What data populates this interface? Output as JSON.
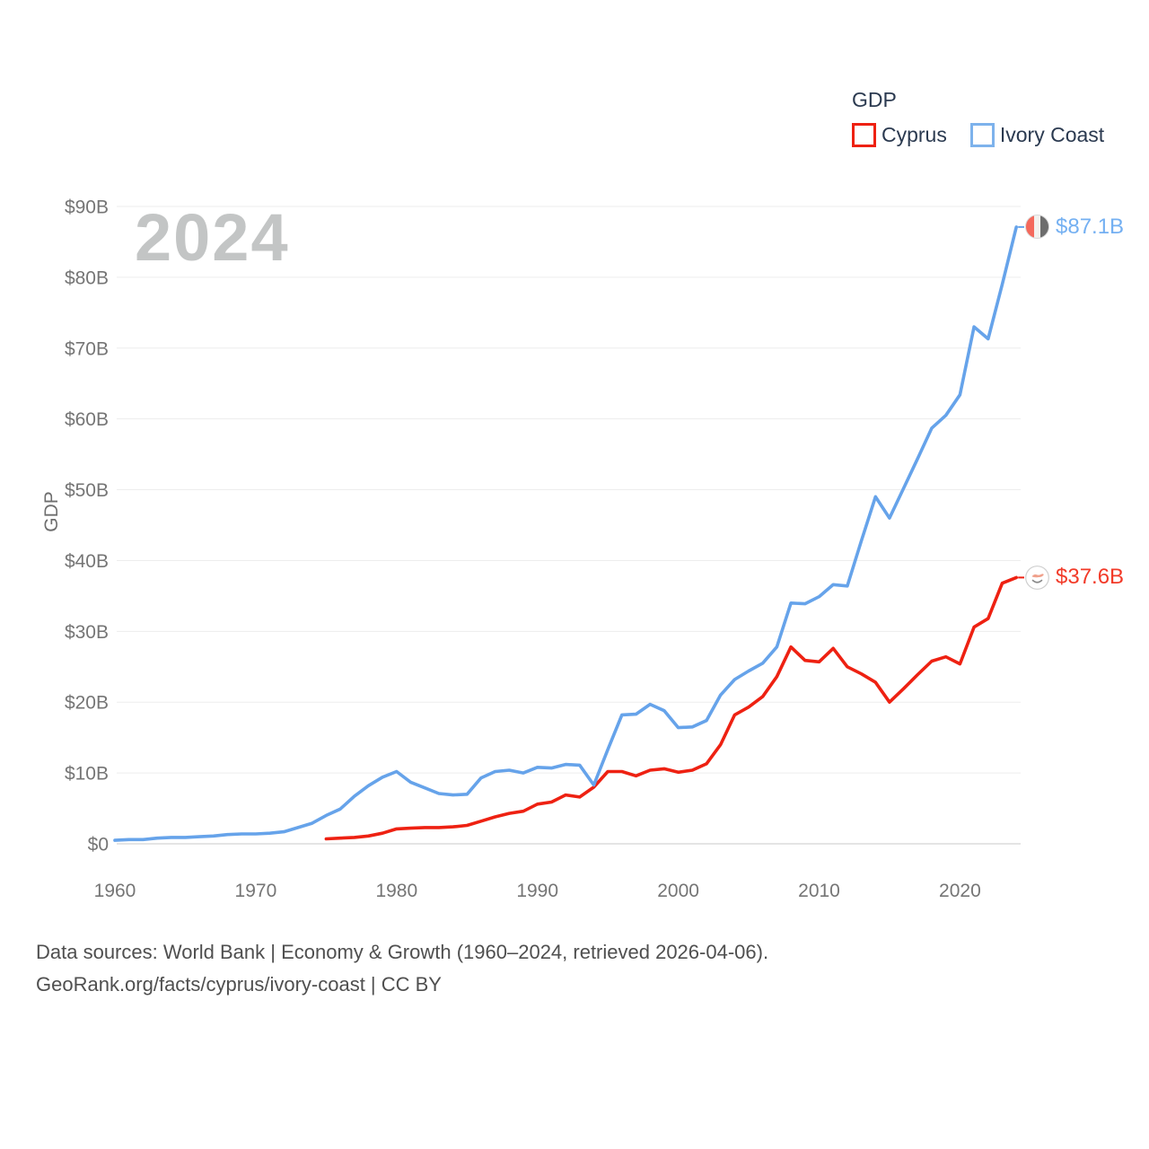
{
  "legend": {
    "note": "legend swatches are outlined squares matching series colors"
  },
  "chart_data": {
    "type": "line",
    "title": "GDP",
    "ylabel": "GDP",
    "watermark": "2024",
    "x_range": [
      1960,
      2024
    ],
    "ylim": [
      0,
      90
    ],
    "y_tick_step": 10,
    "y_tick_labels": [
      "$0",
      "$10B",
      "$20B",
      "$30B",
      "$40B",
      "$50B",
      "$60B",
      "$70B",
      "$80B",
      "$90B"
    ],
    "x_tick_years": [
      1960,
      1970,
      1980,
      1990,
      2000,
      2010,
      2020
    ],
    "grid": "horizontal-only",
    "legend_position": "top-right",
    "series": [
      {
        "key": "cyprus",
        "name": "Cyprus",
        "color": "#ee2112",
        "swatch_color": "#ee2112",
        "label_color": "#f23a28",
        "end_label": "$37.6B",
        "start_year": 1975,
        "values": [
          0.7,
          0.8,
          0.9,
          1.1,
          1.5,
          2.1,
          2.2,
          2.3,
          2.3,
          2.4,
          2.6,
          3.2,
          3.8,
          4.3,
          4.6,
          5.6,
          5.9,
          6.9,
          6.6,
          8.0,
          10.2,
          10.2,
          9.6,
          10.4,
          10.6,
          10.1,
          10.4,
          11.3,
          14.0,
          18.2,
          19.3,
          20.8,
          23.6,
          27.8,
          25.9,
          25.7,
          27.6,
          25.0,
          24.0,
          22.8,
          20.0,
          21.9,
          23.9,
          25.8,
          26.4,
          25.4,
          30.6,
          31.8,
          36.8,
          37.6
        ]
      },
      {
        "key": "ivory-coast",
        "name": "Ivory Coast",
        "color": "#66a3ea",
        "swatch_color": "#7db2ec",
        "label_color": "#74b0f2",
        "end_label": "$87.1B",
        "start_year": 1960,
        "values": [
          0.5,
          0.6,
          0.6,
          0.8,
          0.9,
          0.9,
          1.0,
          1.1,
          1.3,
          1.4,
          1.4,
          1.5,
          1.7,
          2.3,
          2.9,
          4.0,
          4.9,
          6.7,
          8.2,
          9.4,
          10.2,
          8.7,
          7.9,
          7.1,
          6.9,
          7.0,
          9.3,
          10.2,
          10.4,
          10.0,
          10.8,
          10.7,
          11.2,
          11.1,
          8.3,
          13.3,
          18.2,
          18.3,
          19.7,
          18.8,
          16.4,
          16.5,
          17.4,
          21.0,
          23.2,
          24.4,
          25.5,
          27.8,
          34.0,
          33.9,
          34.9,
          36.6,
          36.4,
          42.8,
          49.0,
          46.0,
          50.2,
          54.4,
          58.7,
          60.5,
          63.4,
          73.0,
          71.3,
          79.0,
          87.1
        ]
      }
    ]
  },
  "colors": {
    "grid": "#ededed",
    "zero_line": "#dcdcdc",
    "axis_text": "#757575",
    "legend_text": "#2b3a50",
    "watermark": "#c3c5c5",
    "footer_text": "#4f4f4f",
    "cyprus_red": "#ee2112",
    "ivory_coast_blue": "#66a3ea"
  },
  "footer": {
    "line1": "Data sources: World Bank | Economy & Growth (1960–2024, retrieved 2026-04-06).",
    "line2": "GeoRank.org/facts/cyprus/ivory-coast | CC BY"
  }
}
